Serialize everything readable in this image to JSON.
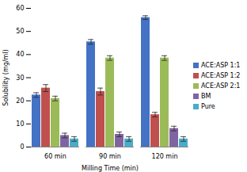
{
  "chart_data": {
    "type": "bar",
    "x_label": "Milling Time (min)",
    "y_label": "Solubility (mg/ml)",
    "categories": [
      "60 min",
      "90 min",
      "120 min"
    ],
    "series": [
      {
        "name": "ACE:ASP 1:1",
        "color": "#4472c4",
        "values": [
          22.5,
          45.5,
          56
        ],
        "errors": [
          1,
          1,
          0.8
        ]
      },
      {
        "name": "ACE:ASP 1:2",
        "color": "#c0504d",
        "values": [
          25.5,
          24,
          14
        ],
        "errors": [
          1.5,
          1.5,
          1
        ]
      },
      {
        "name": "ACE:ASP 2:1",
        "color": "#9bbb59",
        "values": [
          21,
          38.5,
          38.5
        ],
        "errors": [
          1,
          1,
          1
        ]
      },
      {
        "name": "BM",
        "color": "#8064a2",
        "values": [
          5,
          5.5,
          8
        ],
        "errors": [
          1,
          1,
          1
        ]
      },
      {
        "name": "Pure",
        "color": "#4bacc6",
        "values": [
          3.5,
          3.5,
          3.5
        ],
        "errors": [
          1,
          1,
          1
        ]
      }
    ],
    "ylim": [
      0,
      60
    ],
    "yticks": [
      0,
      10,
      20,
      30,
      40,
      50,
      60
    ],
    "grid": false,
    "legend": "right"
  }
}
